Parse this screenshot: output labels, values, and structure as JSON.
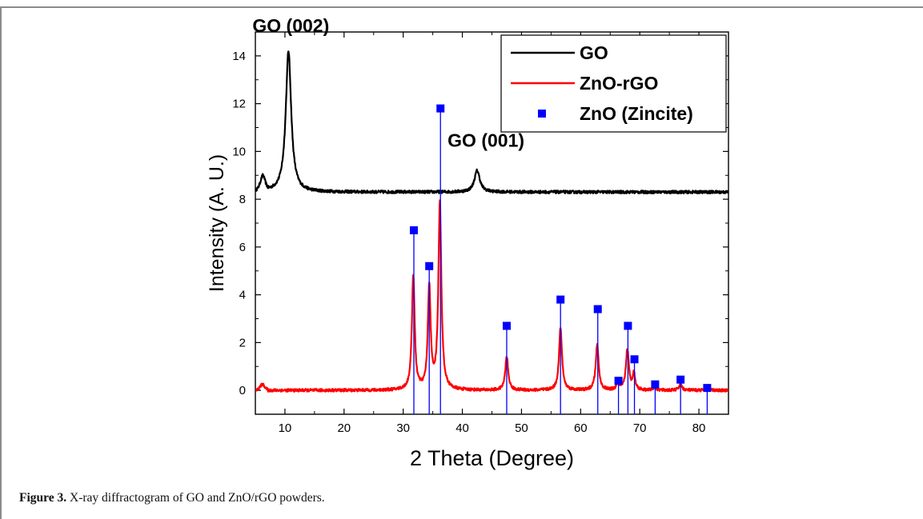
{
  "caption": {
    "label": "Figure 3.",
    "text": " X-ray diffractogram of GO and ZnO/rGO powders."
  },
  "chart_data": {
    "type": "line",
    "xlabel": "2 Theta (Degree)",
    "ylabel": "Intensity (A. U.)",
    "xlim": [
      5,
      85
    ],
    "ylim": [
      -1,
      15
    ],
    "xticks": [
      10,
      20,
      30,
      40,
      50,
      60,
      70,
      80
    ],
    "yticks": [
      0,
      2,
      4,
      6,
      8,
      10,
      12,
      14
    ],
    "legend": {
      "position": "top-right",
      "entries": [
        {
          "name": "GO",
          "color": "#000000",
          "marker": "line"
        },
        {
          "name": "ZnO-rGO",
          "color": "#ff0000",
          "marker": "line"
        },
        {
          "name": "ZnO (Zincite)",
          "color": "#0000ff",
          "marker": "square"
        }
      ]
    },
    "annotations": [
      {
        "text": "GO (002)",
        "x": 11,
        "y": 15
      },
      {
        "text": "GO (001)",
        "x": 44,
        "y": 10.2
      }
    ],
    "series": [
      {
        "name": "GO",
        "color": "#000000",
        "baseline": 8.3,
        "noise": 0.06,
        "start_bump": {
          "x": 5,
          "y": 8.7
        },
        "peaks": [
          {
            "x": 10.6,
            "height": 5.9,
            "width": 0.55
          },
          {
            "x": 6.3,
            "height": 0.3,
            "width": 0.4
          },
          {
            "x": 42.5,
            "height": 0.9,
            "width": 0.55
          }
        ]
      },
      {
        "name": "ZnO-rGO",
        "color": "#ff0000",
        "baseline": 0.0,
        "noise": 0.06,
        "start_bump": {
          "x": 5,
          "y": 0.3
        },
        "peaks": [
          {
            "x": 31.7,
            "height": 4.8,
            "width": 0.28
          },
          {
            "x": 34.4,
            "height": 4.3,
            "width": 0.28
          },
          {
            "x": 36.2,
            "height": 7.8,
            "width": 0.3
          },
          {
            "x": 47.5,
            "height": 1.4,
            "width": 0.3
          },
          {
            "x": 56.6,
            "height": 2.6,
            "width": 0.3
          },
          {
            "x": 62.8,
            "height": 1.9,
            "width": 0.3
          },
          {
            "x": 66.3,
            "height": 0.3,
            "width": 0.25
          },
          {
            "x": 67.9,
            "height": 1.7,
            "width": 0.3
          },
          {
            "x": 69.0,
            "height": 0.7,
            "width": 0.25
          },
          {
            "x": 72.5,
            "height": 0.15,
            "width": 0.25
          },
          {
            "x": 76.9,
            "height": 0.25,
            "width": 0.3
          },
          {
            "x": 81.4,
            "height": 0.1,
            "width": 0.3
          }
        ]
      },
      {
        "name": "ZnO (Zincite)",
        "color": "#0000ff",
        "type": "stick",
        "x": [
          31.8,
          34.4,
          36.3,
          47.5,
          56.6,
          62.9,
          66.4,
          68.0,
          69.1,
          72.6,
          76.9,
          81.4
        ],
        "y": [
          6.7,
          5.2,
          11.8,
          2.7,
          3.8,
          3.4,
          0.4,
          2.7,
          1.3,
          0.25,
          0.45,
          0.1
        ]
      }
    ]
  }
}
